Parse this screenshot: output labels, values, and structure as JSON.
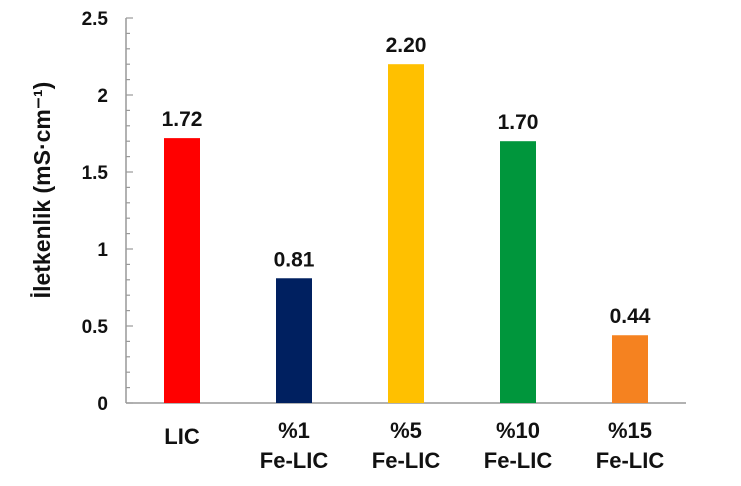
{
  "chart_data": {
    "type": "bar",
    "categories": [
      [
        "LIC"
      ],
      [
        "%1",
        "Fe-LIC"
      ],
      [
        "%5",
        "Fe-LIC"
      ],
      [
        "%10",
        "Fe-LIC"
      ],
      [
        "%15",
        "Fe-LIC"
      ]
    ],
    "values": [
      1.72,
      0.81,
      2.2,
      1.7,
      0.44
    ],
    "data_labels": [
      "1.72",
      "0.81",
      "2.20",
      "1.70",
      "0.44"
    ],
    "colors": [
      "#ff0000",
      "#002060",
      "#ffc000",
      "#00963c",
      "#f58220"
    ],
    "ylabel": "İletkenlik (mS·cm⁻¹)",
    "ylim": [
      0,
      2.5
    ],
    "yticks": [
      "0",
      "0.5",
      "1",
      "1.5",
      "2",
      "2.5"
    ],
    "grid": false,
    "legend": "none"
  }
}
